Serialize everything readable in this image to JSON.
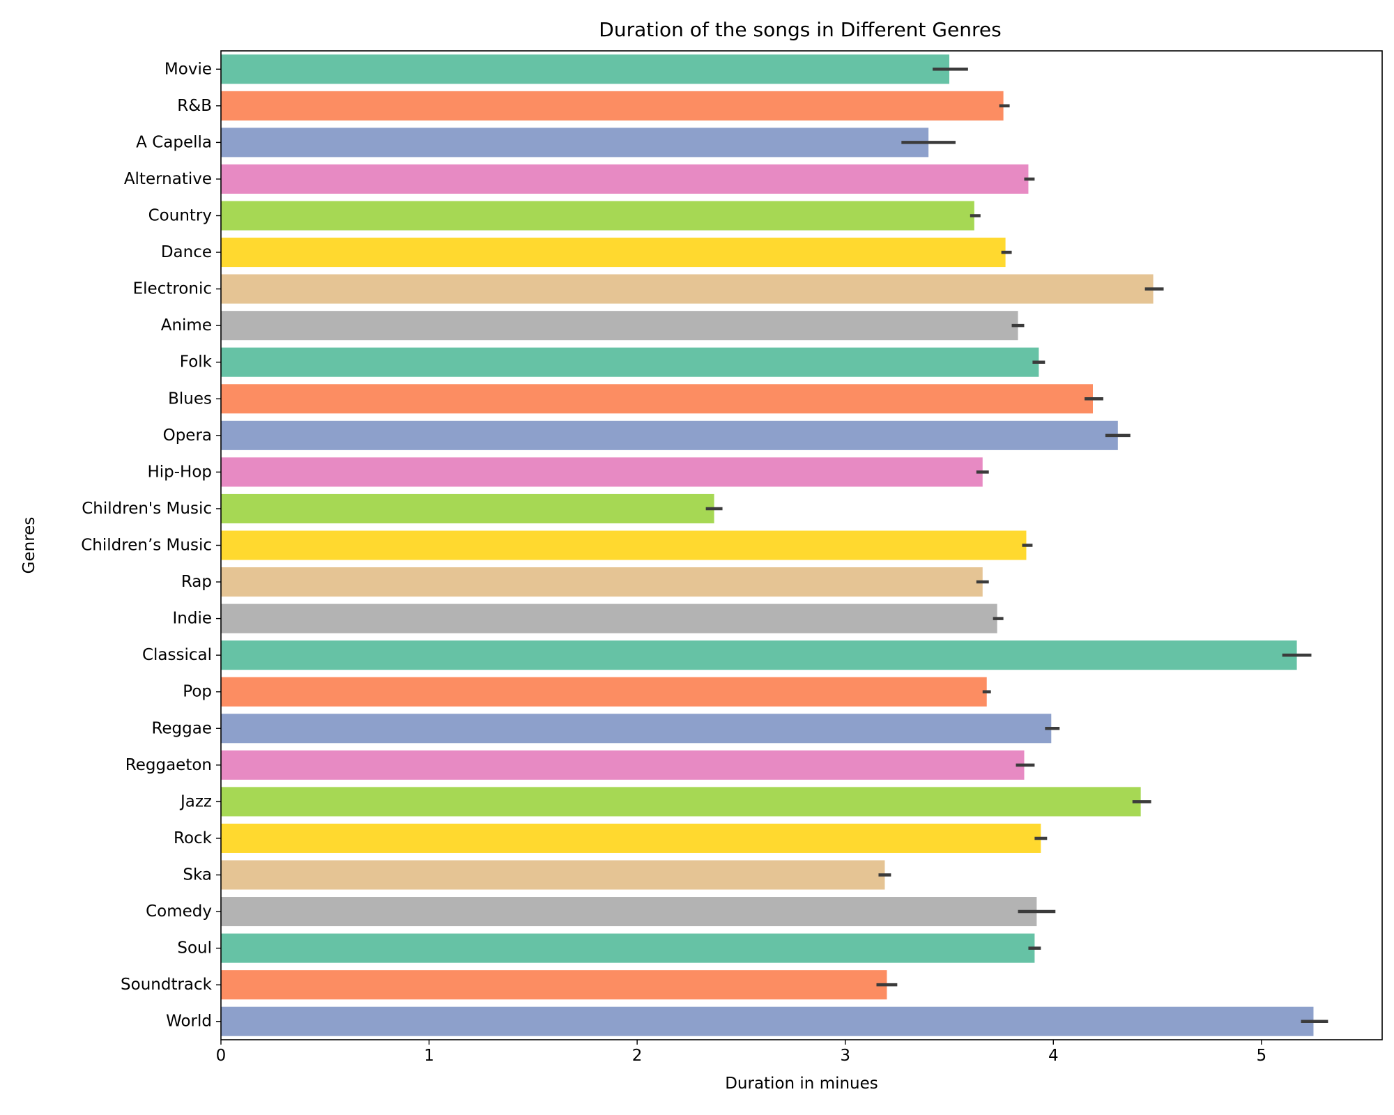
{
  "chart_data": {
    "type": "bar",
    "orientation": "horizontal",
    "title": "Duration of the songs in Different Genres",
    "xlabel": "Duration in minues",
    "ylabel": "Genres",
    "xlim": [
      0,
      5.58
    ],
    "xticks": [
      0,
      1,
      2,
      3,
      4,
      5
    ],
    "grid": false,
    "legend": "none",
    "categories": [
      "Movie",
      "R&B",
      "A Capella",
      "Alternative",
      "Country",
      "Dance",
      "Electronic",
      "Anime",
      "Folk",
      "Blues",
      "Opera",
      "Hip-Hop",
      "Children's Music",
      "Children’s Music",
      "Rap",
      "Indie",
      "Classical",
      "Pop",
      "Reggae",
      "Reggaeton",
      "Jazz",
      "Rock",
      "Ska",
      "Comedy",
      "Soul",
      "Soundtrack",
      "World"
    ],
    "values": [
      3.5,
      3.76,
      3.4,
      3.88,
      3.62,
      3.77,
      4.48,
      3.83,
      3.93,
      4.19,
      4.31,
      3.66,
      2.37,
      3.87,
      3.66,
      3.73,
      5.17,
      3.68,
      3.99,
      3.86,
      4.42,
      3.94,
      3.19,
      3.92,
      3.91,
      3.2,
      5.25
    ],
    "error_low": [
      3.42,
      3.74,
      3.27,
      3.86,
      3.6,
      3.75,
      4.44,
      3.8,
      3.9,
      4.15,
      4.25,
      3.63,
      2.33,
      3.85,
      3.63,
      3.71,
      5.1,
      3.66,
      3.96,
      3.82,
      4.38,
      3.91,
      3.16,
      3.83,
      3.88,
      3.15,
      5.19
    ],
    "error_high": [
      3.59,
      3.79,
      3.53,
      3.91,
      3.65,
      3.8,
      4.53,
      3.86,
      3.96,
      4.24,
      4.37,
      3.69,
      2.41,
      3.9,
      3.69,
      3.76,
      5.24,
      3.7,
      4.03,
      3.91,
      4.47,
      3.97,
      3.22,
      4.01,
      3.94,
      3.25,
      5.32
    ],
    "palette": [
      "#66c2a5",
      "#fc8d62",
      "#8da0cb",
      "#e78ac3",
      "#a6d854",
      "#ffd92f",
      "#e5c494",
      "#b3b3b3"
    ],
    "error_bar_color": "#3b3b3b"
  }
}
